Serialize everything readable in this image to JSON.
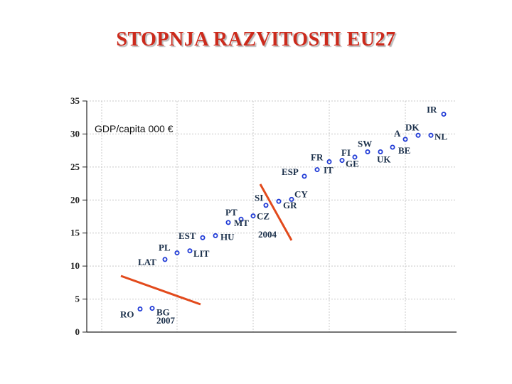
{
  "slide": {
    "title": "STOPNJA RAZVITOSTI EU27"
  },
  "chart_data": {
    "type": "scatter",
    "caption": "GDP/capita 000 €",
    "ylim": [
      0,
      35
    ],
    "yticks": [
      "0",
      "5",
      "10",
      "15",
      "20",
      "25",
      "30",
      "35"
    ],
    "grid": true,
    "points": [
      {
        "label": "RO",
        "rank": 1,
        "value": 3.5
      },
      {
        "label": "BG",
        "rank": 2,
        "value": 3.6
      },
      {
        "label": "LAT",
        "rank": 3,
        "value": 11.0
      },
      {
        "label": "PL",
        "rank": 4,
        "value": 12.0
      },
      {
        "label": "LIT",
        "rank": 5,
        "value": 12.3
      },
      {
        "label": "EST",
        "rank": 6,
        "value": 14.3
      },
      {
        "label": "HU",
        "rank": 7,
        "value": 14.6
      },
      {
        "label": "PT",
        "rank": 8,
        "value": 16.6
      },
      {
        "label": "MT",
        "rank": 9,
        "value": 17.1
      },
      {
        "label": "CZ",
        "rank": 10,
        "value": 17.6
      },
      {
        "label": "SI",
        "rank": 11,
        "value": 19.2
      },
      {
        "label": "GR",
        "rank": 12,
        "value": 19.8
      },
      {
        "label": "CY",
        "rank": 13,
        "value": 20.1
      },
      {
        "label": "ESP",
        "rank": 14,
        "value": 23.6
      },
      {
        "label": "IT",
        "rank": 15,
        "value": 24.6
      },
      {
        "label": "FR",
        "rank": 16,
        "value": 25.8
      },
      {
        "label": "GE",
        "rank": 17,
        "value": 26.0
      },
      {
        "label": "FI",
        "rank": 18,
        "value": 26.5
      },
      {
        "label": "SW",
        "rank": 19,
        "value": 27.3
      },
      {
        "label": "UK",
        "rank": 20,
        "value": 27.3
      },
      {
        "label": "BE",
        "rank": 21,
        "value": 28.0
      },
      {
        "label": "A",
        "rank": 22,
        "value": 29.2
      },
      {
        "label": "DK",
        "rank": 23,
        "value": 29.8
      },
      {
        "label": "NL",
        "rank": 24,
        "value": 29.8
      },
      {
        "label": "IR",
        "rank": 25,
        "value": 33.0
      }
    ],
    "annotations": [
      {
        "text": "2004"
      },
      {
        "text": "2007"
      }
    ],
    "colors": {
      "marker": "#1f3ad6",
      "cut_line": "#e24a1c",
      "grid": "#c8c8c8",
      "axis": "#222222"
    }
  }
}
